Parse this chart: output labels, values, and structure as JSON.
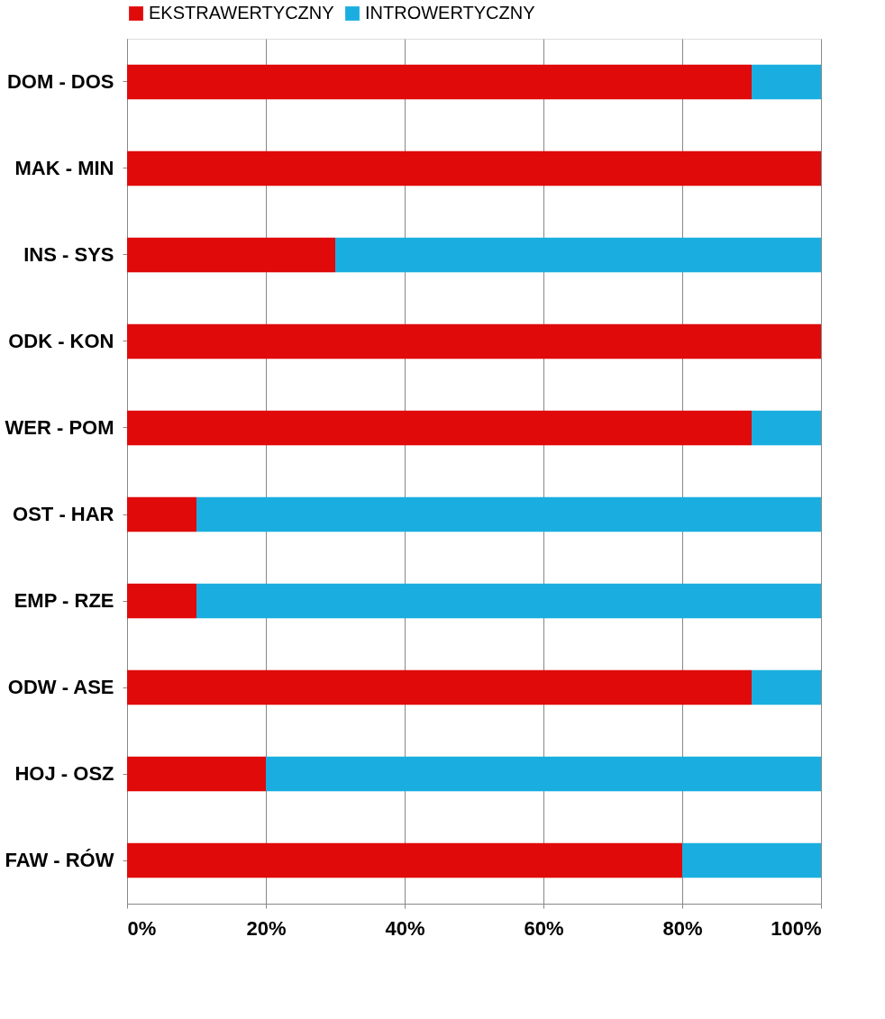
{
  "chart_data": {
    "type": "bar",
    "orientation": "horizontal",
    "stacked": true,
    "categories": [
      "DOM - DOS",
      "MAK - MIN",
      "INS - SYS",
      "ODK - KON",
      "WER - POM",
      "OST - HAR",
      "EMP - RZE",
      "ODW - ASE",
      "HOJ - OSZ",
      "FAW - RÓW"
    ],
    "series": [
      {
        "name": "EKSTRAWERTYCZNY",
        "color": "#e00a0a",
        "values": [
          90,
          100,
          30,
          100,
          90,
          10,
          10,
          90,
          20,
          80
        ]
      },
      {
        "name": "INTROWERTYCZNY",
        "color": "#1aaee0",
        "values": [
          10,
          0,
          70,
          0,
          10,
          90,
          90,
          10,
          80,
          20
        ]
      }
    ],
    "xlim": [
      0,
      100
    ],
    "xticks": [
      {
        "value": 0,
        "label": "0%"
      },
      {
        "value": 20,
        "label": "20%"
      },
      {
        "value": 40,
        "label": "40%"
      },
      {
        "value": 60,
        "label": "60%"
      },
      {
        "value": 80,
        "label": "80%"
      },
      {
        "value": 100,
        "label": "100%"
      }
    ],
    "grid": "x",
    "legend": "top"
  }
}
